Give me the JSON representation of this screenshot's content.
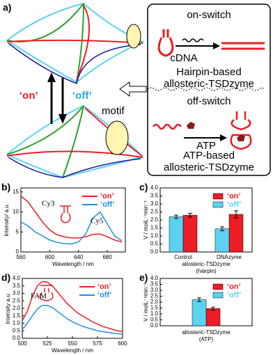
{
  "figure": {
    "panel_label": "a)",
    "on": "‘on’",
    "off": "‘off’",
    "motif": "motif",
    "on_switch": "on-switch",
    "cdna": "cDNA",
    "hairpin_based": [
      "Hairpin-based",
      "allosteric-TSDzyme"
    ],
    "off_switch": "off-switch",
    "atp": "ATP",
    "atp_based": [
      "ATP-based",
      "allosteric-TSDzyme"
    ]
  },
  "chart_data": [
    {
      "type": "line",
      "panel_label": "b)",
      "xlabel": "Wavelength / nm",
      "ylabel": "Intensity/ a.u.",
      "annotations": [
        "Cy3",
        "Cy5"
      ],
      "legend": "upper right",
      "xlim": [
        560,
        705
      ],
      "ylim": [
        0,
        16
      ],
      "xticks": [
        560,
        600,
        640,
        680
      ],
      "yticks": [
        0,
        5,
        10,
        15
      ],
      "x": [
        560,
        570,
        580,
        590,
        600,
        610,
        620,
        630,
        640,
        650,
        660,
        670,
        680,
        690,
        700
      ],
      "series": [
        {
          "name": "‘on’",
          "color": "#ee1c24",
          "values": [
            14,
            12.5,
            10,
            7.5,
            5.5,
            4.3,
            3.8,
            3.5,
            3.5,
            3.8,
            4.4,
            4.5,
            3.8,
            3,
            2.5
          ]
        },
        {
          "name": "‘off’",
          "color": "#1e90e0",
          "values": [
            7.5,
            6.5,
            5,
            4,
            3,
            2.4,
            2.1,
            2,
            2.5,
            4.5,
            8.5,
            10,
            7,
            4,
            2.8
          ]
        }
      ]
    },
    {
      "type": "bar",
      "panel_label": "c)",
      "xlabel": [
        "allosteric-TSDzyme",
        "(hairpin)"
      ],
      "ylabel": "V / molL⁻¹min⁻¹",
      "legend": "upper right",
      "categories": [
        "Control",
        "DNAzyme"
      ],
      "ylim": [
        0,
        4
      ],
      "yticks": [
        {
          "value": 0,
          "label": "0.0"
        },
        {
          "value": 0.5,
          "label": "0.5"
        },
        {
          "value": 1,
          "label": "1.0"
        },
        {
          "value": 1.5,
          "label": "1.5"
        },
        {
          "value": 2,
          "label": "2.0"
        },
        {
          "value": 2.5,
          "label": "2.5"
        },
        {
          "value": 3,
          "label": "3.0"
        },
        {
          "value": 3.5,
          "label": "3.5"
        },
        {
          "value": 4,
          "label": "4.0"
        }
      ],
      "series": [
        {
          "name": "‘on’",
          "color": "#ee1c24",
          "values": [
            2.3,
            2.35
          ],
          "errors": [
            0.12,
            0.22
          ]
        },
        {
          "name": "‘off’",
          "color": "#5ad2f0",
          "values": [
            2.2,
            1.45
          ],
          "errors": [
            0.1,
            0.12
          ]
        }
      ]
    },
    {
      "type": "line",
      "panel_label": "d)",
      "xlabel": "Wavelength / nm",
      "ylabel": "Intensity a.u.",
      "annotations": [
        "FAM"
      ],
      "legend": "upper right",
      "xlim": [
        500,
        600
      ],
      "ylim": [
        0,
        4
      ],
      "xticks": [
        500,
        525,
        550,
        575,
        600
      ],
      "yticks": [
        {
          "value": 0,
          "label": "0.0"
        },
        {
          "value": 0.5,
          "label": "0.5"
        },
        {
          "value": 1,
          "label": "1.0"
        },
        {
          "value": 1.5,
          "label": "1.5"
        },
        {
          "value": 2,
          "label": "2.0"
        },
        {
          "value": 2.5,
          "label": "2.5"
        },
        {
          "value": 3,
          "label": "3.0"
        },
        {
          "value": 3.5,
          "label": "3.5"
        },
        {
          "value": 4,
          "label": "4.0"
        }
      ],
      "x": [
        500,
        505,
        510,
        515,
        520,
        525,
        530,
        535,
        540,
        545,
        550,
        555,
        560,
        565,
        570,
        575,
        580,
        585,
        590,
        595,
        600
      ],
      "series": [
        {
          "name": "‘on’",
          "color": "#ee1c24",
          "values": [
            1.2,
            1.8,
            2.8,
            3.5,
            3.8,
            3.75,
            3.5,
            3.1,
            2.7,
            2.3,
            2.0,
            1.7,
            1.5,
            1.3,
            1.1,
            0.95,
            0.8,
            0.7,
            0.6,
            0.5,
            0.45
          ]
        },
        {
          "name": "‘off’",
          "color": "#1e90e0",
          "values": [
            0.6,
            1.0,
            1.5,
            1.95,
            2.2,
            2.2,
            2.05,
            1.8,
            1.55,
            1.3,
            1.1,
            0.95,
            0.8,
            0.7,
            0.6,
            0.5,
            0.45,
            0.4,
            0.35,
            0.3,
            0.28
          ]
        }
      ]
    },
    {
      "type": "bar",
      "panel_label": "e)",
      "xlabel": [
        "allosteric-TSDzyme",
        "(ATP)"
      ],
      "ylabel": "V / molL⁻¹min⁻¹",
      "legend": "upper right",
      "categories": [
        null
      ],
      "ylim": [
        0,
        4
      ],
      "yticks": [
        {
          "value": 0,
          "label": "0.0"
        },
        {
          "value": 0.5,
          "label": "0.5"
        },
        {
          "value": 1,
          "label": "1.0"
        },
        {
          "value": 1.5,
          "label": "1.5"
        },
        {
          "value": 2,
          "label": "2.0"
        },
        {
          "value": 2.5,
          "label": "2.5"
        },
        {
          "value": 3,
          "label": "3.0"
        },
        {
          "value": 3.5,
          "label": "3.5"
        },
        {
          "value": 4,
          "label": "4.0"
        }
      ],
      "series": [
        {
          "name": "‘on’",
          "color": "#ee1c24",
          "values": [
            1.45
          ],
          "errors": [
            0.12
          ]
        },
        {
          "name": "‘off’",
          "color": "#5ad2f0",
          "values": [
            2.2
          ],
          "errors": [
            0.15
          ]
        }
      ]
    }
  ]
}
